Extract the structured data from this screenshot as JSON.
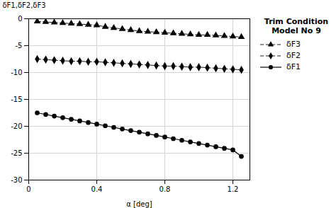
{
  "chart_data": {
    "type": "line",
    "title": "Trim Condition\nModel No 9",
    "xlabel": "α [deg]",
    "ylabel": "δF1,δF2,δF3",
    "x": [
      0.05,
      0.1,
      0.15,
      0.2,
      0.25,
      0.3,
      0.35,
      0.4,
      0.45,
      0.5,
      0.55,
      0.6,
      0.65,
      0.7,
      0.75,
      0.8,
      0.85,
      0.9,
      0.95,
      1.0,
      1.05,
      1.1,
      1.15,
      1.2,
      1.25
    ],
    "series": [
      {
        "name": "δF3",
        "color": "#000000",
        "marker": "triangle",
        "line_style": "dashed",
        "values": [
          -0.5,
          -0.6,
          -0.7,
          -0.8,
          -0.9,
          -1.0,
          -1.1,
          -1.2,
          -1.5,
          -1.7,
          -1.9,
          -2.1,
          -2.3,
          -2.4,
          -2.5,
          -2.6,
          -2.7,
          -2.8,
          -2.9,
          -3.0,
          -3.0,
          -3.1,
          -3.2,
          -3.3,
          -3.4
        ]
      },
      {
        "name": "δF2",
        "color": "#000000",
        "marker": "diamond",
        "line_style": "dashed",
        "values": [
          -7.5,
          -7.6,
          -7.7,
          -7.8,
          -7.9,
          -7.9,
          -8.0,
          -8.0,
          -8.1,
          -8.2,
          -8.3,
          -8.4,
          -8.5,
          -8.6,
          -8.7,
          -8.8,
          -8.8,
          -8.9,
          -9.0,
          -9.0,
          -9.1,
          -9.2,
          -9.3,
          -9.4,
          -9.5
        ]
      },
      {
        "name": "δF1",
        "color": "#000000",
        "marker": "circle",
        "line_style": "solid",
        "values": [
          -17.5,
          -17.8,
          -18.1,
          -18.4,
          -18.7,
          -19.0,
          -19.3,
          -19.6,
          -19.9,
          -20.2,
          -20.5,
          -20.8,
          -21.1,
          -21.4,
          -21.7,
          -22.0,
          -22.3,
          -22.6,
          -22.9,
          -23.2,
          -23.5,
          -23.8,
          -24.1,
          -24.4,
          -25.6
        ]
      }
    ],
    "xlim": [
      0,
      1.3
    ],
    "ylim": [
      -30,
      0
    ],
    "xticks": [
      0,
      0.4,
      0.8,
      1.2
    ],
    "yticks": [
      0,
      -5,
      -10,
      -15,
      -20,
      -25,
      -30
    ],
    "grid": true,
    "legend": "right"
  }
}
